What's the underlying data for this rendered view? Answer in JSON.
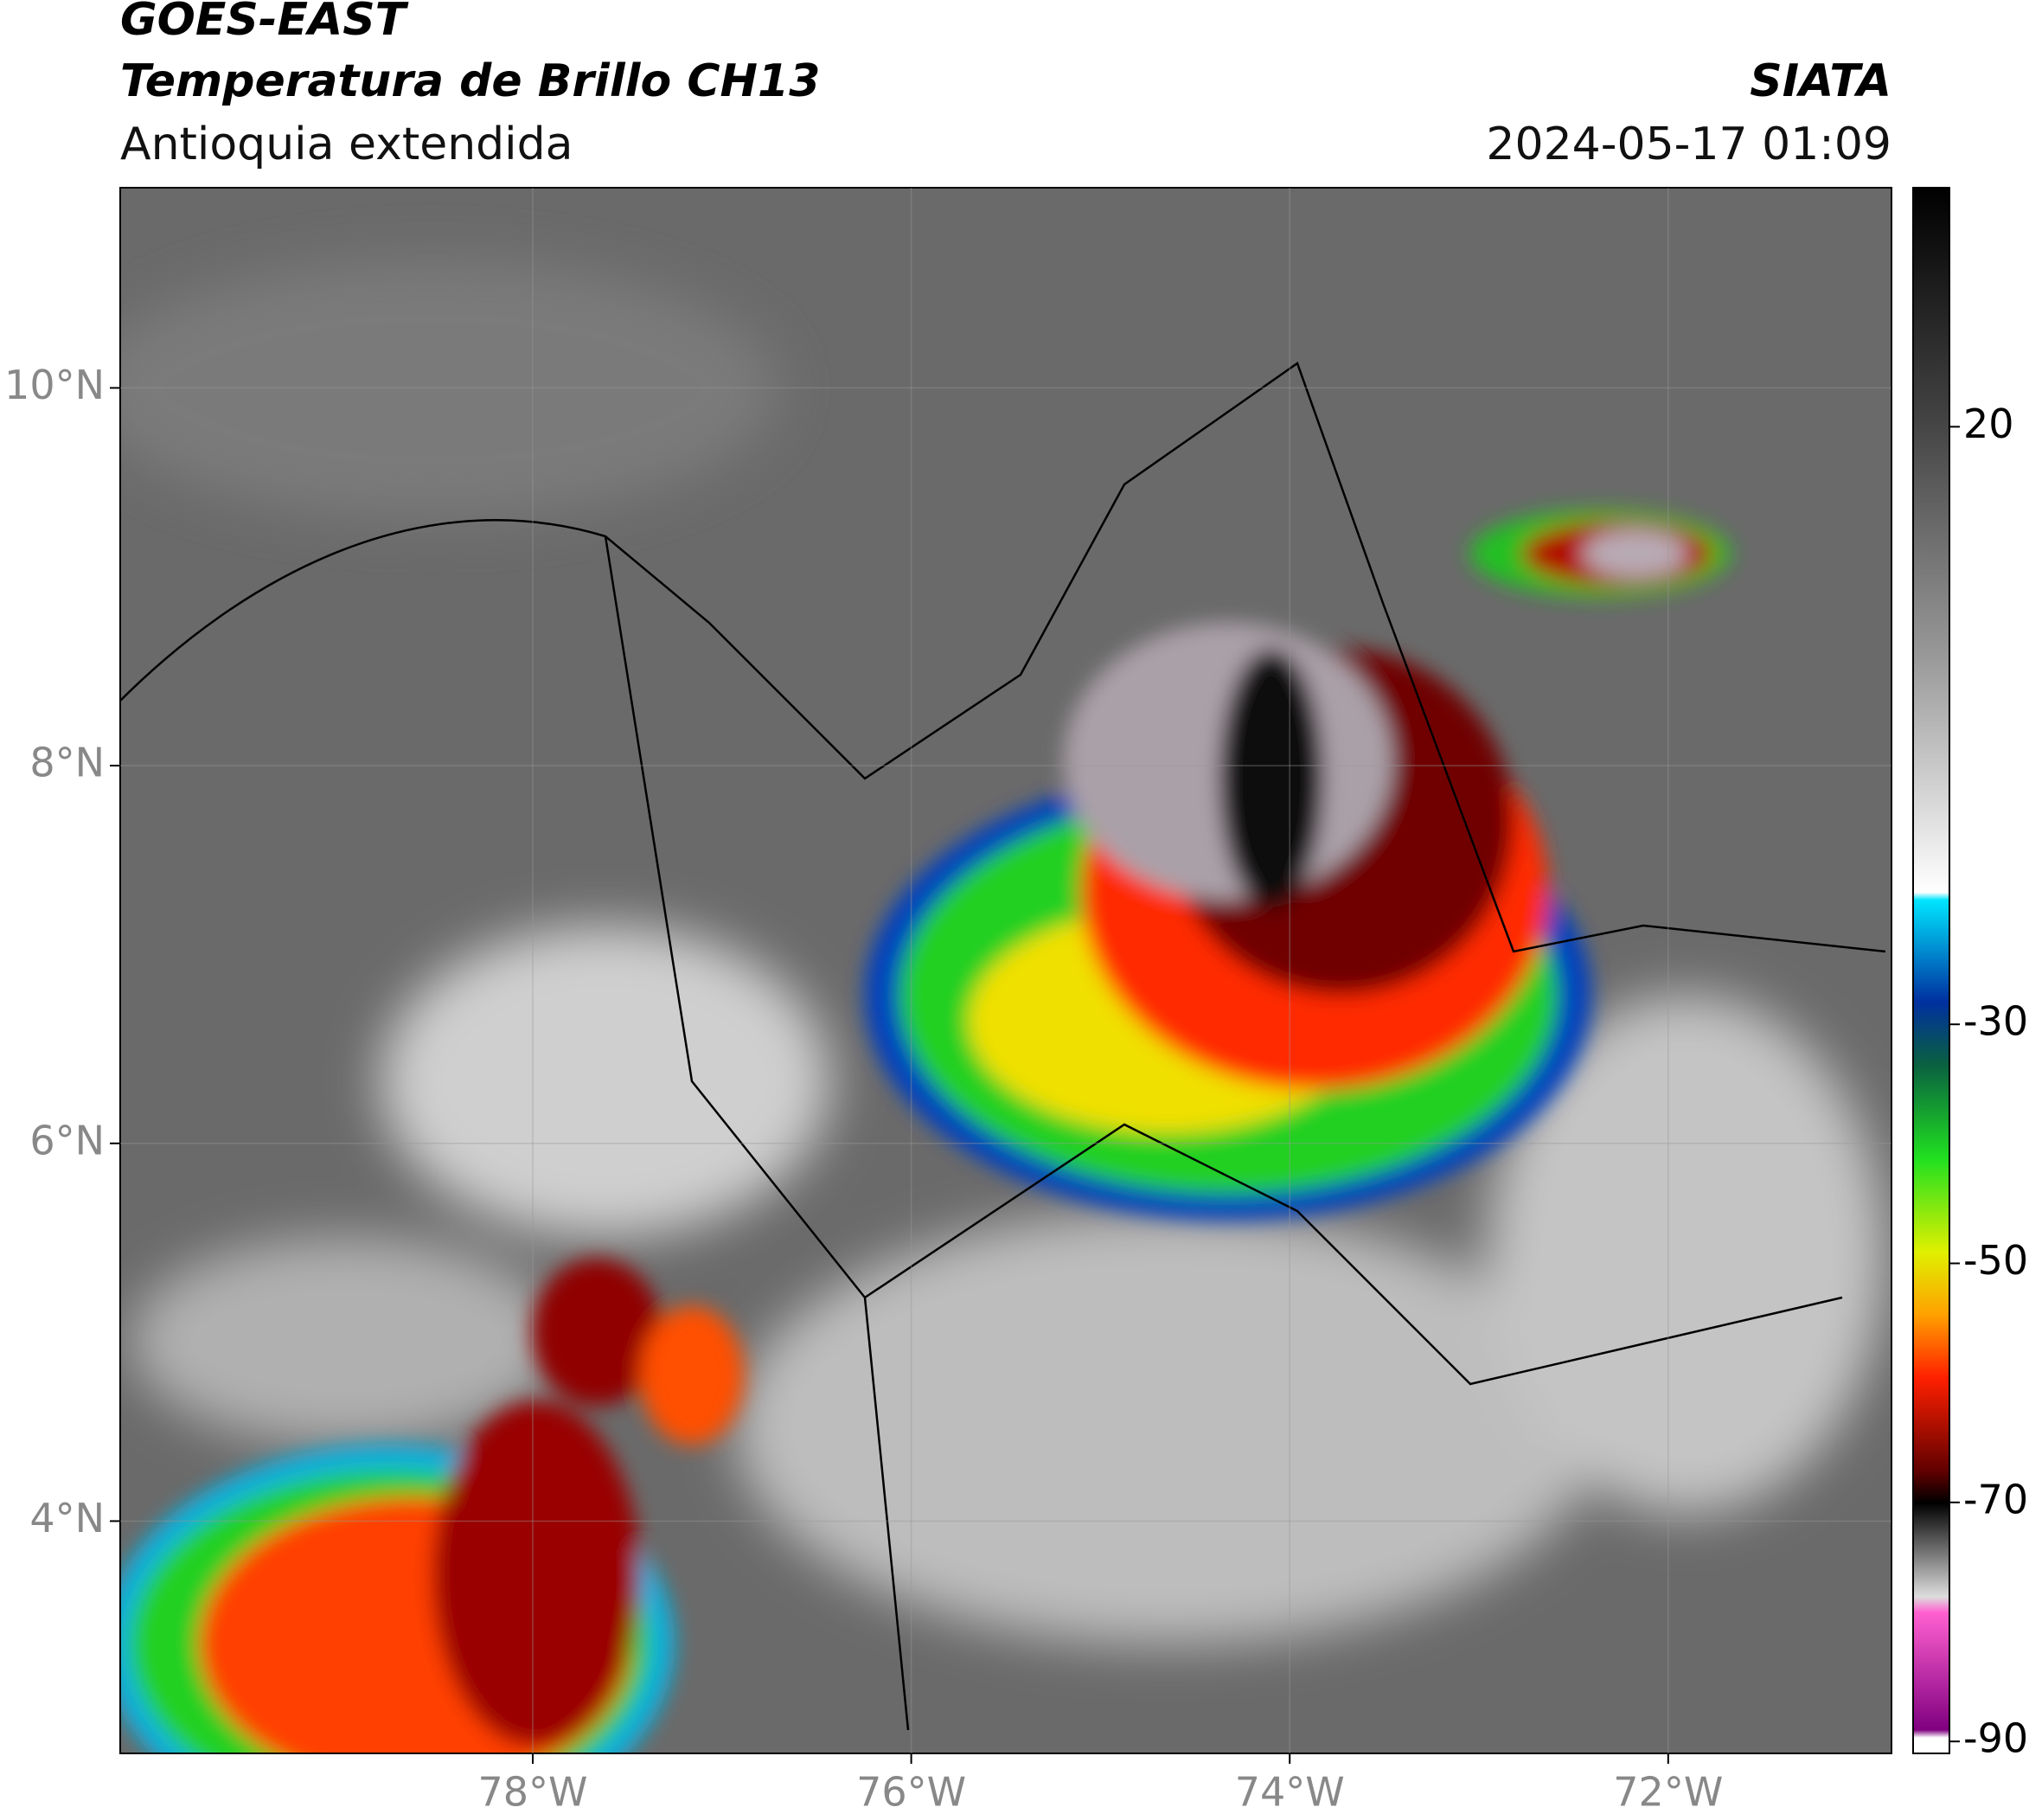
{
  "header": {
    "satellite": "GOES-EAST",
    "product": "Temperatura de Brillo CH13",
    "region": "Antioquia extendida",
    "agency": "SIATA",
    "datetime": "2024-05-17 01:09"
  },
  "map": {
    "xlim": [
      -80.18,
      -70.82
    ],
    "ylim": [
      2.77,
      11.06
    ],
    "xticks": [
      {
        "value": -78,
        "label": "78°W"
      },
      {
        "value": -76,
        "label": "76°W"
      },
      {
        "value": -74,
        "label": "74°W"
      },
      {
        "value": -72,
        "label": "72°W"
      }
    ],
    "yticks": [
      {
        "value": 10,
        "label": "10°N"
      },
      {
        "value": 8,
        "label": "8°N"
      },
      {
        "value": 6,
        "label": "6°N"
      },
      {
        "value": 4,
        "label": "4°N"
      }
    ]
  },
  "colorbar": {
    "lim": [
      -91,
      40
    ],
    "ticks": [
      20,
      -30,
      -50,
      -70,
      -90
    ]
  }
}
